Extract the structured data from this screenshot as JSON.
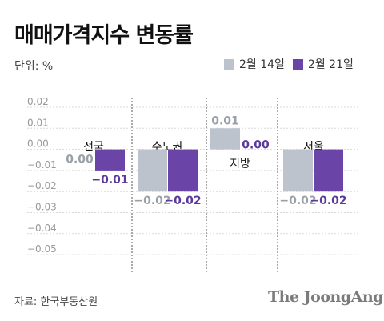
{
  "header": {
    "title": "매매가격지수 변동률",
    "unit": "단위: %"
  },
  "footer": {
    "source": "자료: 한국부동산원",
    "brand": "The JoongAng"
  },
  "colors": {
    "series_1": "#bcc3cc",
    "series_2": "#6a44a6",
    "label_1": "#9aa0a8",
    "label_2": "#5b3a9a",
    "grid": "#d8d8d8",
    "divider": "#555555"
  },
  "chart_data": {
    "type": "bar",
    "title": "매매가격지수 변동률",
    "ylabel": "단위: %",
    "ylim": [
      -0.05,
      0.02
    ],
    "yticks": [
      "0.02",
      "0.01",
      "0.00",
      "−0.01",
      "−0.02",
      "−0.03",
      "−0.04",
      "−0.05"
    ],
    "categories": [
      "전국",
      "수도권",
      "지방",
      "서울"
    ],
    "series": [
      {
        "name": "2월 14일",
        "values": [
          0.0,
          -0.02,
          0.01,
          -0.02
        ],
        "labels": [
          "0.00",
          "−0.02",
          "0.01",
          "−0.02"
        ]
      },
      {
        "name": "2월 21일",
        "values": [
          -0.01,
          -0.02,
          0.0,
          -0.02
        ],
        "labels": [
          "−0.01",
          "−0.02",
          "0.00",
          "−0.02"
        ]
      }
    ],
    "legend": "top-right",
    "grid": true
  }
}
